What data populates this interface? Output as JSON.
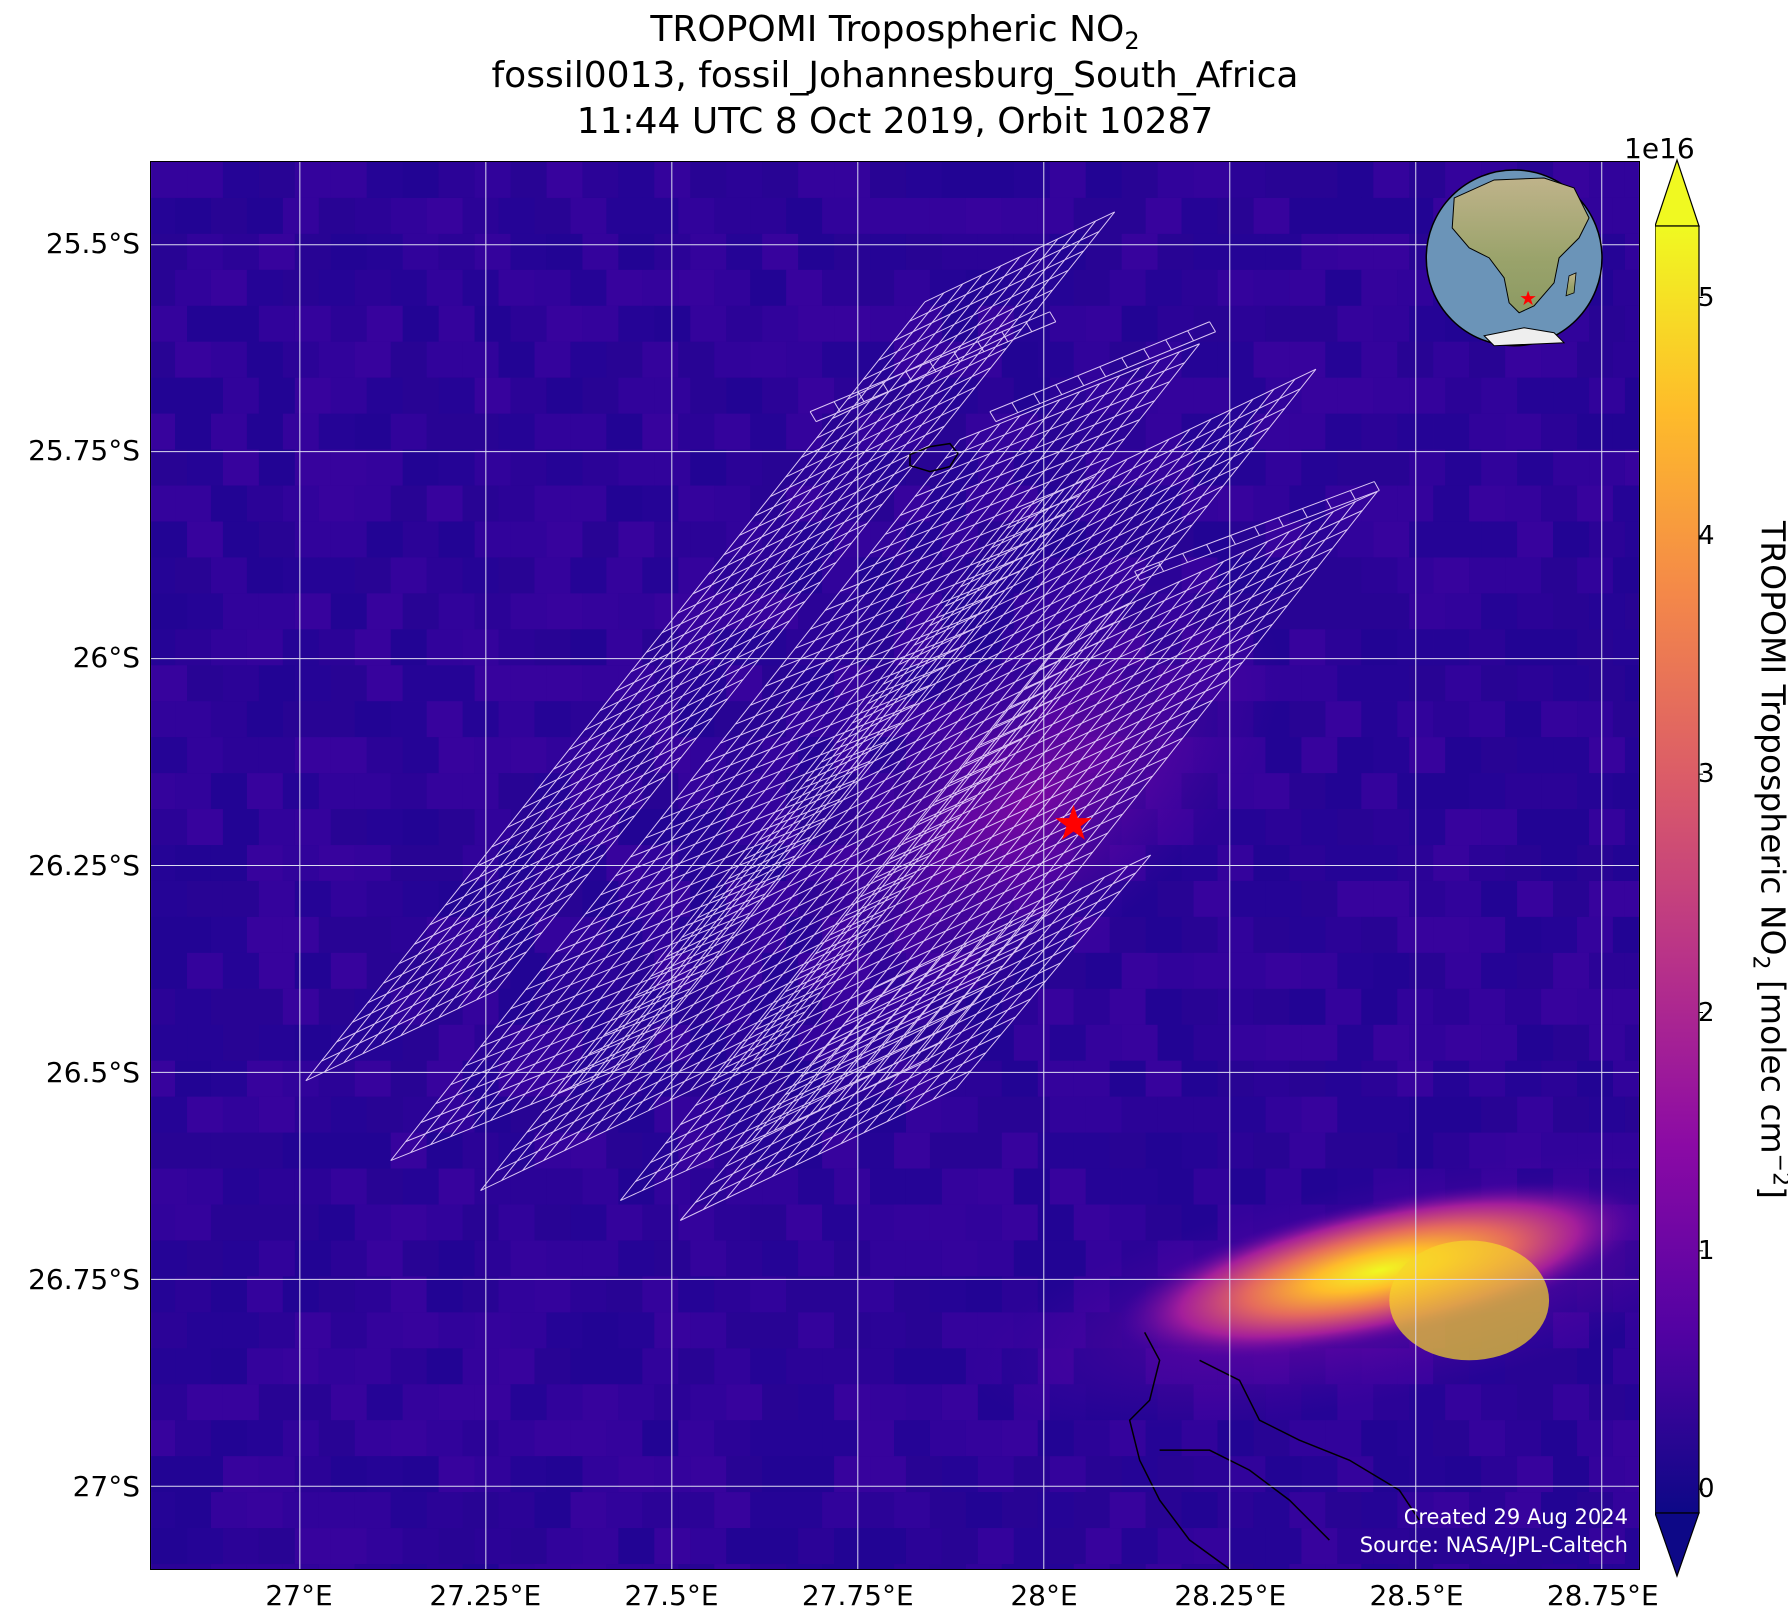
{
  "title": {
    "line1_main": "TROPOMI Tropospheric NO",
    "line1_sub": "2",
    "line2": "fossil0013, fossil_Johannesburg_South_Africa",
    "line3": "11:44 UTC 8 Oct 2019, Orbit 10287"
  },
  "map": {
    "lon_range": [
      26.8,
      28.8
    ],
    "lat_range": [
      -27.1,
      -25.4
    ],
    "lat_ticks": [
      {
        "value": -25.5,
        "label": "25.5°S"
      },
      {
        "value": -25.75,
        "label": "25.75°S"
      },
      {
        "value": -26.0,
        "label": "26°S"
      },
      {
        "value": -26.25,
        "label": "26.25°S"
      },
      {
        "value": -26.5,
        "label": "26.5°S"
      },
      {
        "value": -26.75,
        "label": "26.75°S"
      },
      {
        "value": -27.0,
        "label": "27°S"
      }
    ],
    "lon_ticks": [
      {
        "value": 27.0,
        "label": "27°E"
      },
      {
        "value": 27.25,
        "label": "27.25°E"
      },
      {
        "value": 27.5,
        "label": "27.5°E"
      },
      {
        "value": 27.75,
        "label": "27.75°E"
      },
      {
        "value": 28.0,
        "label": "28°E"
      },
      {
        "value": 28.25,
        "label": "28.25°E"
      },
      {
        "value": 28.5,
        "label": "28.5°E"
      },
      {
        "value": 28.75,
        "label": "28.75°E"
      }
    ],
    "site_marker": {
      "lon": 28.04,
      "lat": -26.2,
      "color": "#ff0000",
      "icon": "star-icon"
    },
    "grid_color": "#dcdcf0",
    "background_color": "#2d0499",
    "plume_hotspot": {
      "lon": 28.57,
      "lat": -26.78
    }
  },
  "colorbar": {
    "exponent": "1e16",
    "min": -0.1,
    "max": 5.3,
    "ticks": [
      {
        "value": 0,
        "label": "0"
      },
      {
        "value": 1,
        "label": "1"
      },
      {
        "value": 2,
        "label": "2"
      },
      {
        "value": 3,
        "label": "3"
      },
      {
        "value": 4,
        "label": "4"
      },
      {
        "value": 5,
        "label": "5"
      }
    ],
    "label_main": "TROPOMI Tropospheric NO",
    "label_sub": "2",
    "label_unit": " [molec cm",
    "label_sup": "−2",
    "label_end": "]",
    "colormap": [
      "#0d0887",
      "#5302a3",
      "#8b0aa5",
      "#b83289",
      "#db5c68",
      "#f48849",
      "#febc2a",
      "#f0f921"
    ]
  },
  "inset_globe": {
    "ocean_color": "#6b94b8",
    "land_color": "#c8b98a",
    "marker_color": "#ff0000",
    "icon": "globe-icon"
  },
  "credits": {
    "created": "Created 29 Aug 2024",
    "source": "Source: NASA/JPL-Caltech"
  }
}
